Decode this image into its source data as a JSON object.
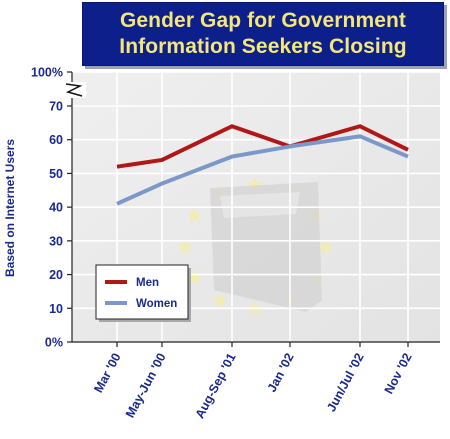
{
  "title": [
    "Gender Gap for Government",
    "Information Seekers Closing"
  ],
  "chart_data": {
    "type": "line",
    "title": "Gender Gap for Government Information Seekers Closing",
    "ylabel": "Based on Internet Users",
    "xlabel": "",
    "categories": [
      "Mar '00",
      "May-Jun '00",
      "Aug-Sep '01",
      "Jan '02",
      "Jun/Jul '02",
      "Nov '02"
    ],
    "yticks": [
      "0%",
      "10",
      "20",
      "30",
      "40",
      "50",
      "60",
      "70",
      "100%"
    ],
    "ylim": [
      0,
      70
    ],
    "axis_break": "between 70 and 100%",
    "grid": true,
    "legend_position": "lower-left",
    "series": [
      {
        "name": "Men",
        "color": "#b01818",
        "values": [
          52,
          54,
          64,
          58,
          64,
          57
        ]
      },
      {
        "name": "Women",
        "color": "#7b98c8",
        "values": [
          41,
          47,
          55,
          58,
          61,
          55
        ]
      }
    ]
  }
}
